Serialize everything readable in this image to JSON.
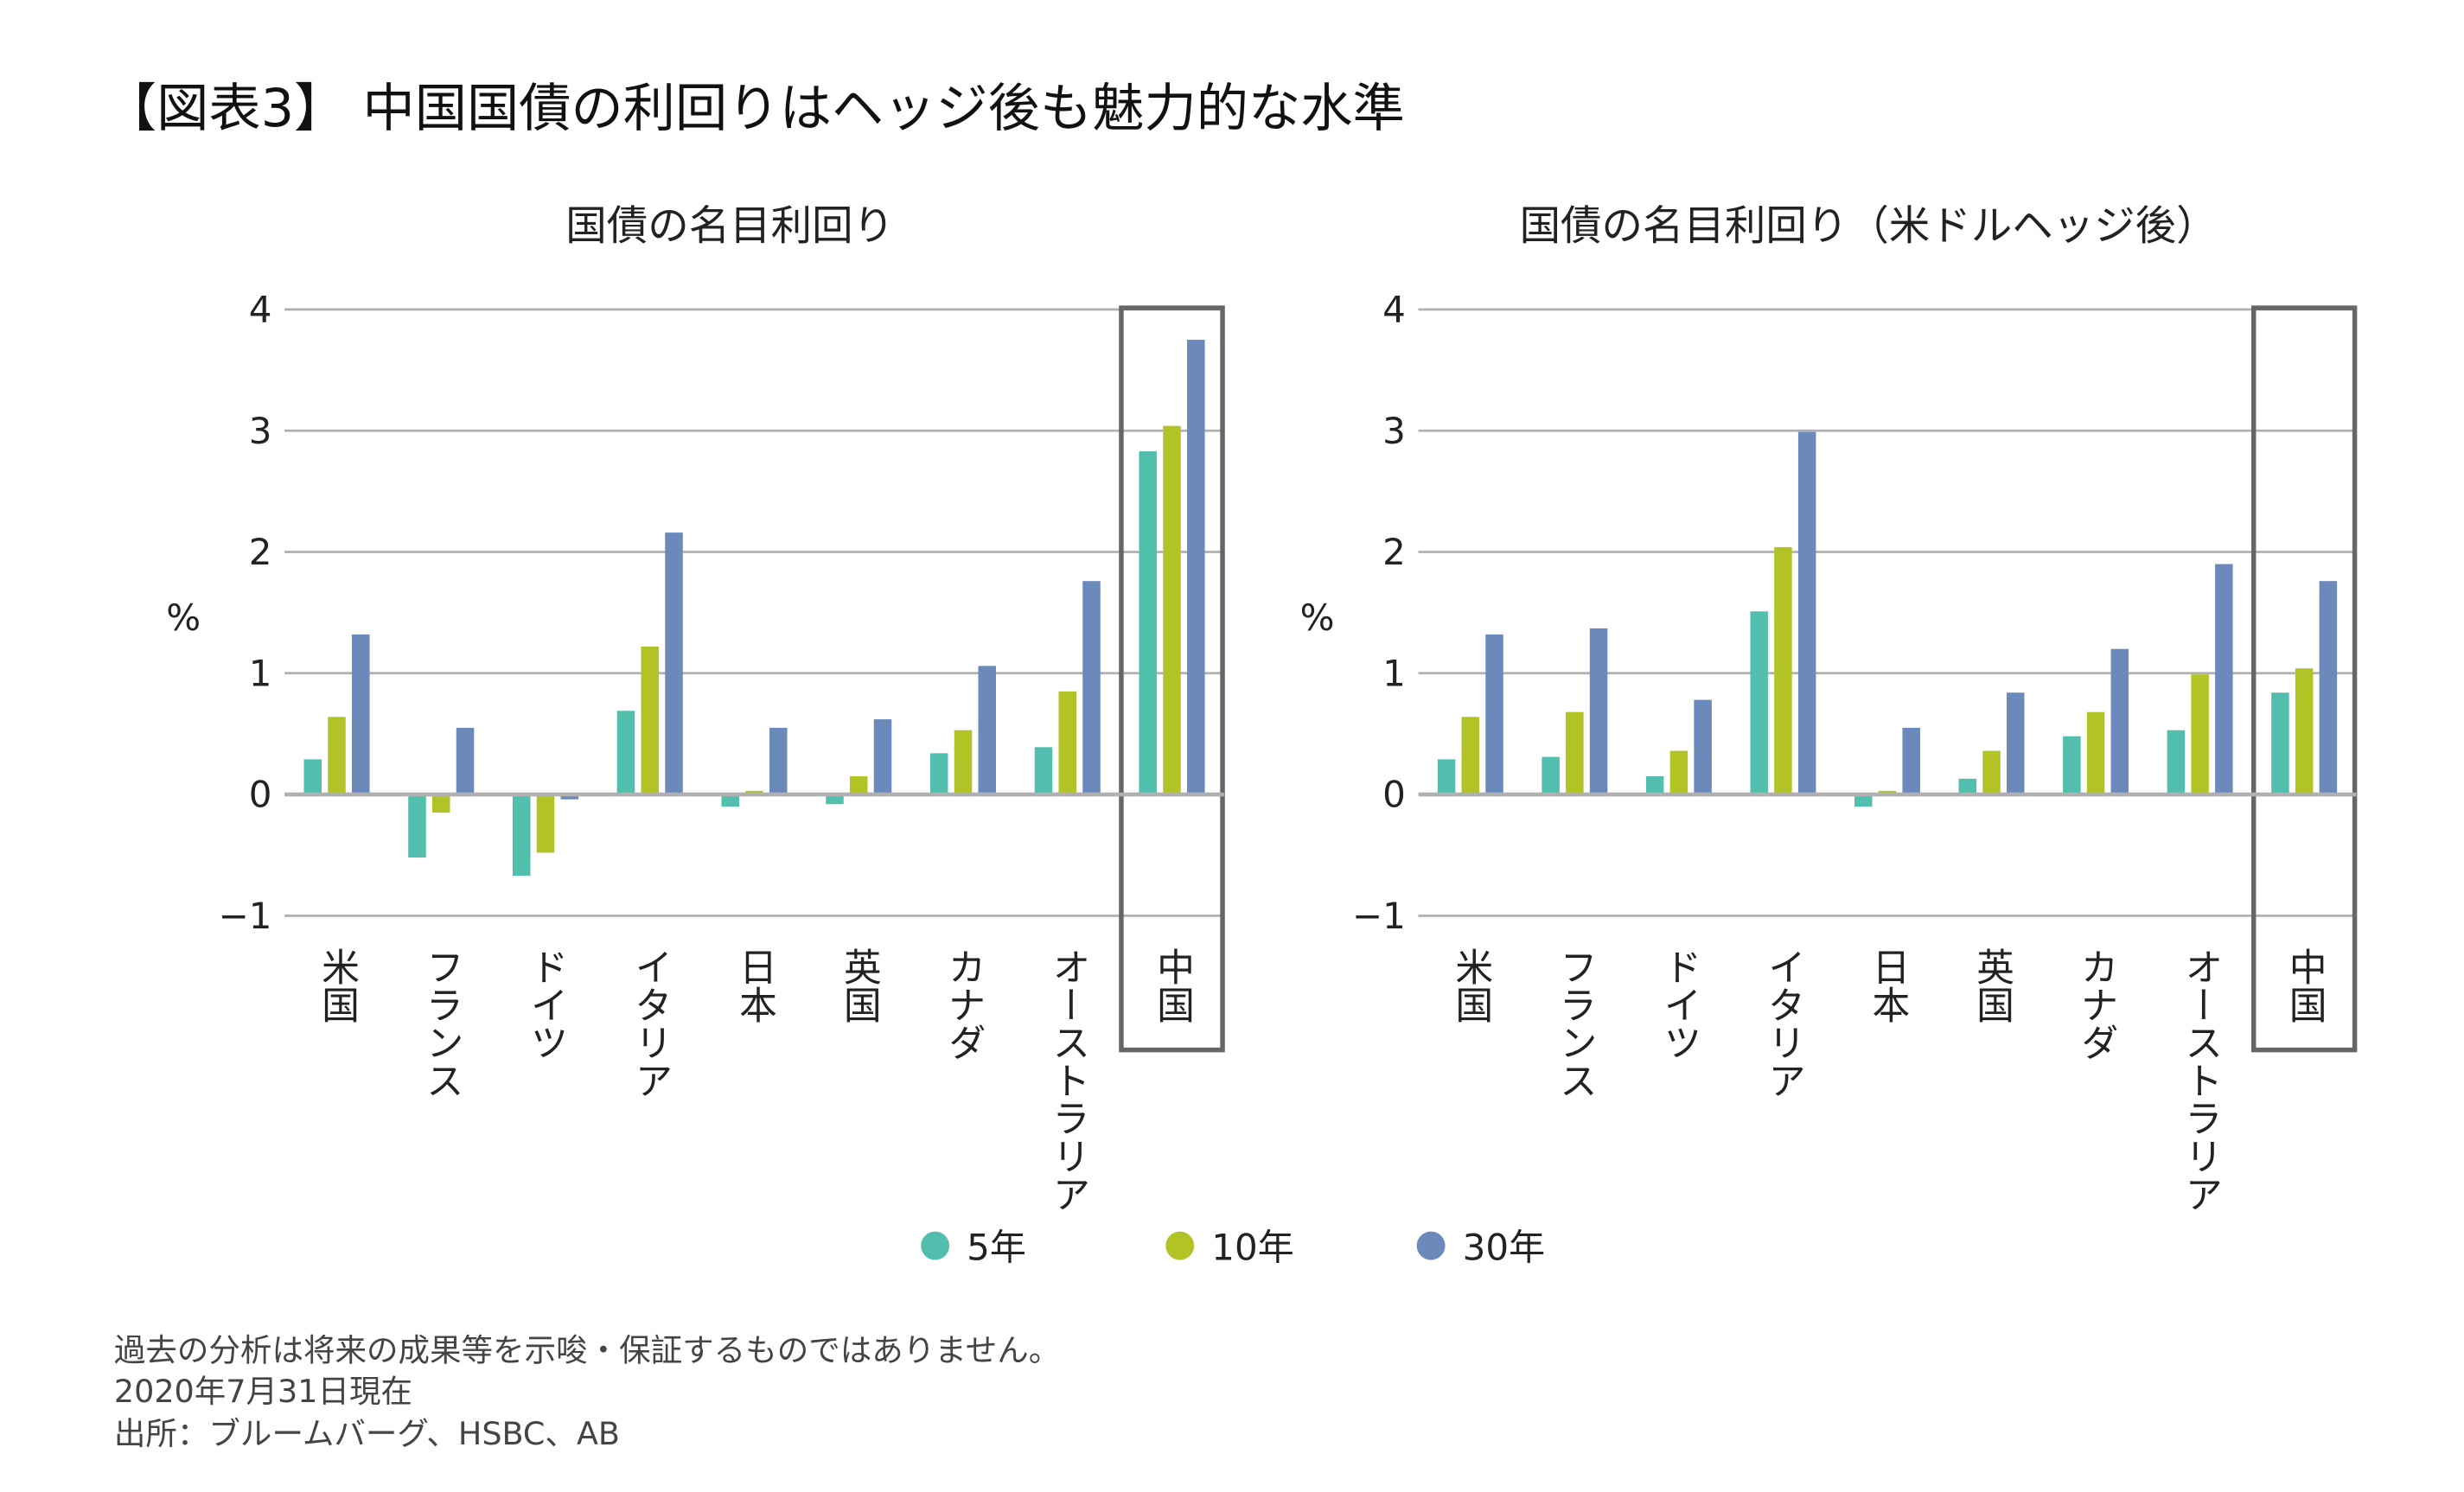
{
  "title": "【図表3】 中国国債の利回りはヘッジ後も魅力的な水準",
  "footer": [
    "過去の分析は将来の成果等を示唆・保証するものではありません。",
    "2020年7月31日現在",
    "出所：ブルームバーグ、HSBC、AB"
  ],
  "legend": [
    "5年",
    "10年",
    "30年"
  ],
  "colors": {
    "5年": "#52bfae",
    "10年": "#b2c425",
    "30年": "#6b89bb",
    "highlight_box": "#666666",
    "grid": "#b0b0b0"
  },
  "chart_data": [
    {
      "type": "bar",
      "title": "国債の名目利回り",
      "ylabel": "%",
      "ylim": [
        -1,
        4
      ],
      "yticks": [
        "4",
        "3",
        "2",
        "1",
        "0",
        "−1"
      ],
      "grid": true,
      "legend_position": "bottom",
      "highlighted_category": "中国",
      "categories": [
        "米国",
        "フランス",
        "ドイツ",
        "イタリア",
        "日本",
        "英国",
        "カナダ",
        "オーストラリア",
        "中国"
      ],
      "series": [
        {
          "name": "5年",
          "values": [
            0.29,
            -0.52,
            -0.67,
            0.69,
            -0.1,
            -0.08,
            0.34,
            0.39,
            2.83
          ]
        },
        {
          "name": "10年",
          "values": [
            0.64,
            -0.15,
            -0.48,
            1.22,
            0.03,
            0.15,
            0.53,
            0.85,
            3.04
          ]
        },
        {
          "name": "30年",
          "values": [
            1.32,
            0.55,
            -0.04,
            2.16,
            0.55,
            0.62,
            1.06,
            1.76,
            3.75
          ]
        }
      ]
    },
    {
      "type": "bar",
      "title": "国債の名目利回り（米ドルヘッジ後）",
      "ylabel": "%",
      "ylim": [
        -1,
        4
      ],
      "yticks": [
        "4",
        "3",
        "2",
        "1",
        "0",
        "−1"
      ],
      "grid": true,
      "legend_position": "bottom",
      "highlighted_category": "中国",
      "categories": [
        "米国",
        "フランス",
        "ドイツ",
        "イタリア",
        "日本",
        "英国",
        "カナダ",
        "オーストラリア",
        "中国"
      ],
      "series": [
        {
          "name": "5年",
          "values": [
            0.29,
            0.31,
            0.15,
            1.51,
            -0.1,
            0.13,
            0.48,
            0.53,
            0.84
          ]
        },
        {
          "name": "10年",
          "values": [
            0.64,
            0.68,
            0.36,
            2.04,
            0.03,
            0.36,
            0.68,
            0.99,
            1.04
          ]
        },
        {
          "name": "30年",
          "values": [
            1.32,
            1.37,
            0.78,
            2.99,
            0.55,
            0.84,
            1.2,
            1.9,
            1.76
          ]
        }
      ]
    }
  ]
}
